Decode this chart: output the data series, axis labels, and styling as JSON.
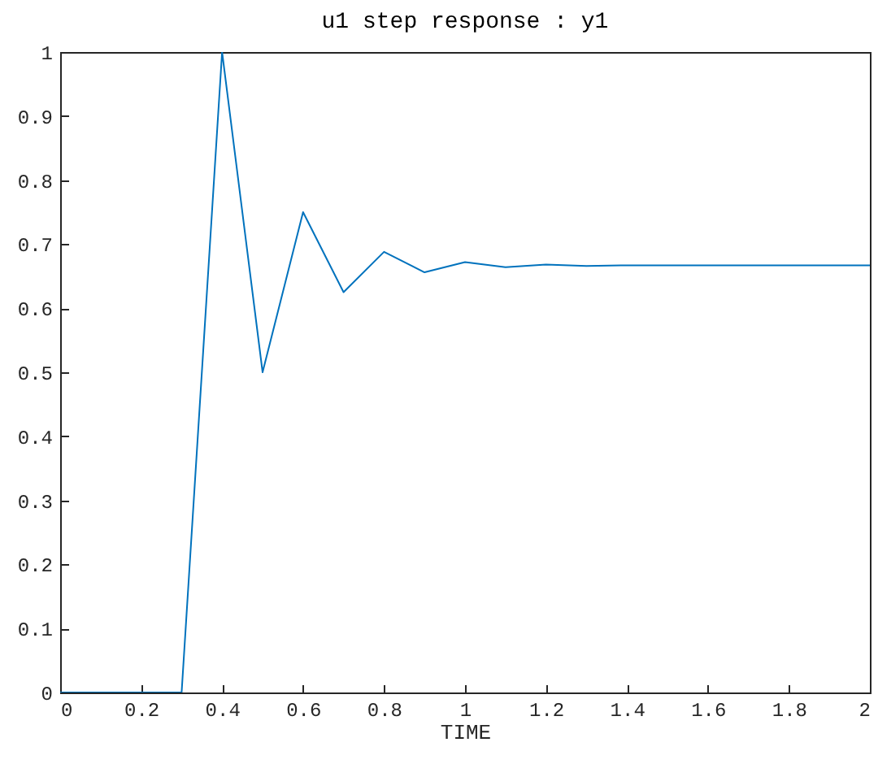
{
  "chart_data": {
    "type": "line",
    "title": "u1 step response : y1",
    "xlabel": "TIME",
    "x": [
      0,
      0.1,
      0.2,
      0.3,
      0.4,
      0.5,
      0.6,
      0.7,
      0.8,
      0.9,
      1.0,
      1.1,
      1.2,
      1.3,
      1.4,
      1.5,
      1.6,
      1.7,
      1.8,
      1.9,
      2.0
    ],
    "series": [
      {
        "color": "#0072bd",
        "values": [
          0,
          0,
          0,
          0,
          1,
          0.5,
          0.75,
          0.625,
          0.688,
          0.656,
          0.672,
          0.664,
          0.668,
          0.666,
          0.667,
          0.667,
          0.667,
          0.667,
          0.667,
          0.667,
          0.667
        ]
      }
    ],
    "xlim": [
      0,
      2
    ],
    "xticks": [
      0,
      0.2,
      0.4,
      0.6,
      0.8,
      1,
      1.2,
      1.4,
      1.6,
      1.8,
      2
    ],
    "ylim": [
      0,
      1
    ],
    "yticks": [
      0,
      0.1,
      0.2,
      0.3,
      0.4,
      0.5,
      0.6,
      0.7,
      0.8,
      0.9,
      1
    ],
    "grid": false,
    "marker": "none",
    "line_style": "solid"
  }
}
